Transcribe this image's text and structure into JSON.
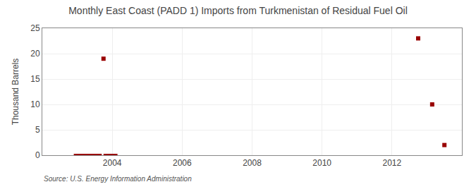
{
  "chart_data": {
    "type": "scatter",
    "title": "Monthly East Coast (PADD 1) Imports from Turkmenistan of Residual Fuel Oil",
    "ylabel": "Thousand Barrels",
    "annotations": [
      "Source: U.S. Energy Information Administration"
    ],
    "color": "#990000",
    "xlim": [
      2002.0,
      2014.0
    ],
    "xticks": [
      2004,
      2006,
      2008,
      2010,
      2012
    ],
    "ylim": [
      0,
      25
    ],
    "yticks": [
      0,
      5,
      10,
      15,
      20,
      25
    ],
    "grid": true,
    "series": [
      {
        "type": "line",
        "x": [
          2002.9,
          2003.7
        ],
        "values": [
          0.0,
          0.0
        ]
      },
      {
        "type": "line",
        "x": [
          2003.75,
          2004.15
        ],
        "values": [
          0.0,
          0.0
        ]
      },
      {
        "type": "scatter",
        "marker": "square",
        "x": [
          2003.75,
          2012.75,
          2013.15,
          2013.5
        ],
        "values": [
          19.0,
          23.0,
          10.0,
          2.0
        ]
      }
    ]
  }
}
